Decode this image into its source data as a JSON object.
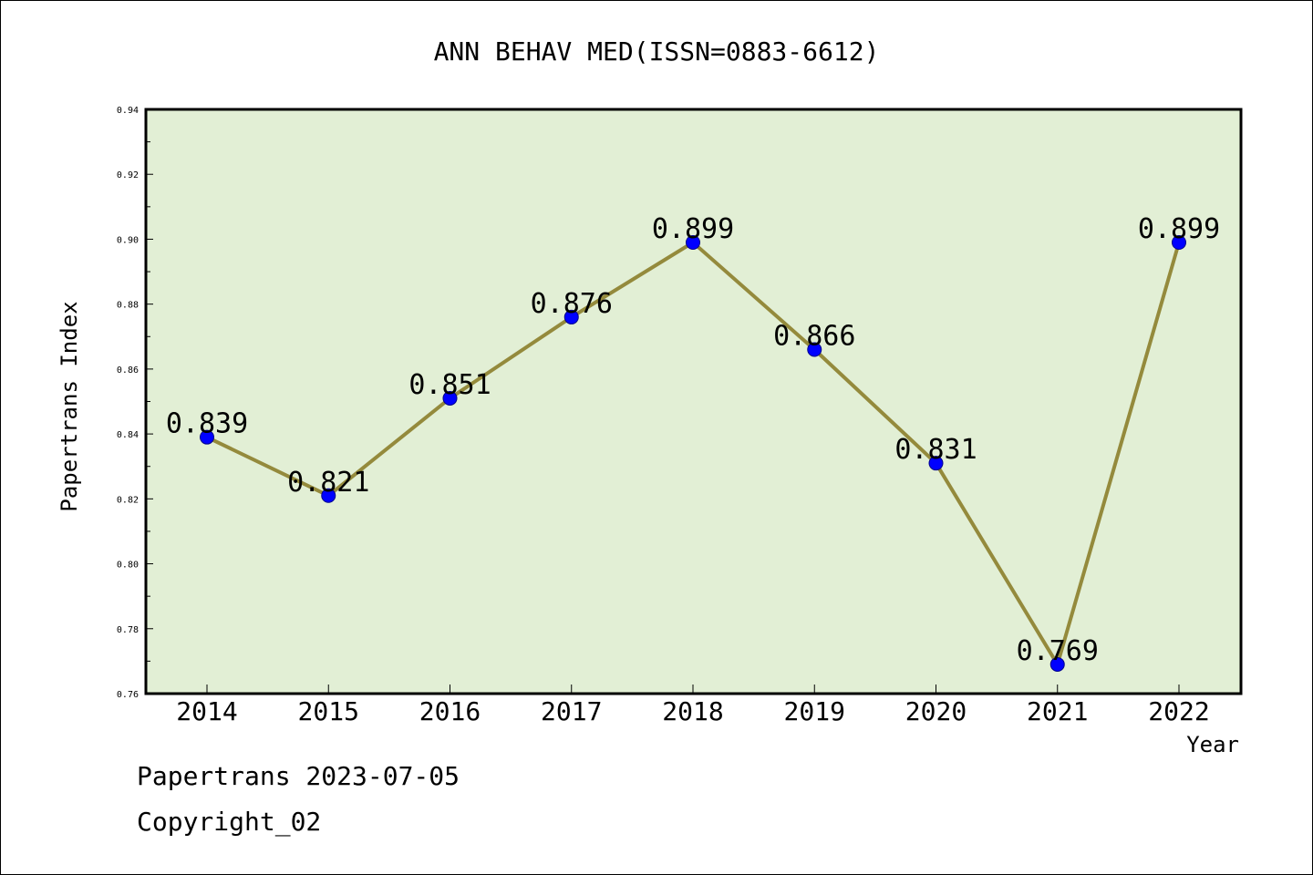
{
  "chart_data": {
    "type": "line",
    "title": "ANN BEHAV MED(ISSN=0883-6612)",
    "xlabel": "Year",
    "ylabel": "Papertrans Index",
    "categories": [
      "2014",
      "2015",
      "2016",
      "2017",
      "2018",
      "2019",
      "2020",
      "2021",
      "2022"
    ],
    "values": [
      0.839,
      0.821,
      0.851,
      0.876,
      0.899,
      0.866,
      0.831,
      0.769,
      0.899
    ],
    "value_labels": [
      "0.839",
      "0.821",
      "0.851",
      "0.876",
      "0.899",
      "0.866",
      "0.831",
      "0.769",
      "0.899"
    ],
    "ylim": [
      0.76,
      0.94
    ],
    "yticks": [
      0.76,
      0.78,
      0.8,
      0.82,
      0.84,
      0.86,
      0.88,
      0.9,
      0.92,
      0.94
    ],
    "ytick_labels": [
      "0.76",
      "0.78",
      "0.80",
      "0.82",
      "0.84",
      "0.86",
      "0.88",
      "0.90",
      "0.92",
      "0.94"
    ],
    "grid": false,
    "colors": {
      "plot_background": "#e2efd5",
      "line": "#948a3c",
      "marker": "#0000ff",
      "axis": "#000000"
    }
  },
  "footer": {
    "date_text": "Papertrans 2023-07-05",
    "copyright_text": "Copyright_02"
  }
}
